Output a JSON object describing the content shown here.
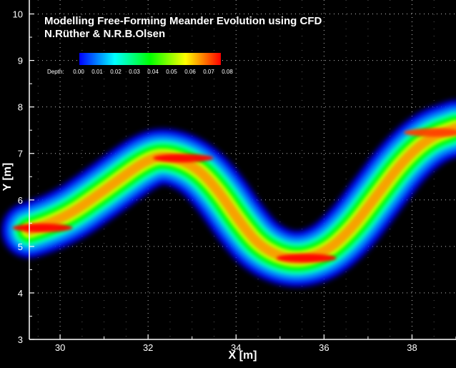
{
  "chart_data": {
    "type": "heatmap",
    "title": "Modelling Free-Forming Meander Evolution using CFD",
    "subtitle": "N.Rüther & N.R.B.Olsen",
    "xlabel": "X [m]",
    "ylabel": "Y [m]",
    "xlim": [
      29.3,
      39.0
    ],
    "ylim": [
      3.0,
      10.3
    ],
    "xticks": [
      30,
      32,
      34,
      36,
      38
    ],
    "yticks": [
      3,
      4,
      5,
      6,
      7,
      8,
      9,
      10
    ],
    "grid": true,
    "colorbar": {
      "label": "Depth:",
      "ticks": [
        "0.00",
        "0.01",
        "0.02",
        "0.03",
        "0.04",
        "0.05",
        "0.06",
        "0.07",
        "0.08"
      ],
      "min": 0.0,
      "max": 0.08,
      "colors": [
        "#0000ff",
        "#0080ff",
        "#00ffff",
        "#00ff80",
        "#00ff00",
        "#80ff00",
        "#ffff00",
        "#ff8000",
        "#ff0000"
      ],
      "placement": "top-left"
    },
    "channel_centerline": [
      {
        "x": 29.3,
        "y": 5.35
      },
      {
        "x": 30.0,
        "y": 5.55
      },
      {
        "x": 31.0,
        "y": 6.2
      },
      {
        "x": 32.0,
        "y": 6.9
      },
      {
        "x": 32.5,
        "y": 6.95
      },
      {
        "x": 33.1,
        "y": 6.7
      },
      {
        "x": 33.6,
        "y": 6.2
      },
      {
        "x": 34.1,
        "y": 5.5
      },
      {
        "x": 34.6,
        "y": 4.95
      },
      {
        "x": 35.3,
        "y": 4.68
      },
      {
        "x": 36.0,
        "y": 4.85
      },
      {
        "x": 36.6,
        "y": 5.35
      },
      {
        "x": 37.2,
        "y": 6.1
      },
      {
        "x": 37.8,
        "y": 6.85
      },
      {
        "x": 38.4,
        "y": 7.35
      },
      {
        "x": 39.0,
        "y": 7.55
      }
    ],
    "max_depth_zones": [
      {
        "x": 29.6,
        "y": 5.4,
        "depth": 0.08
      },
      {
        "x": 32.8,
        "y": 6.9,
        "depth": 0.08
      },
      {
        "x": 35.6,
        "y": 4.75,
        "depth": 0.08
      },
      {
        "x": 38.5,
        "y": 7.45,
        "depth": 0.075
      }
    ]
  }
}
